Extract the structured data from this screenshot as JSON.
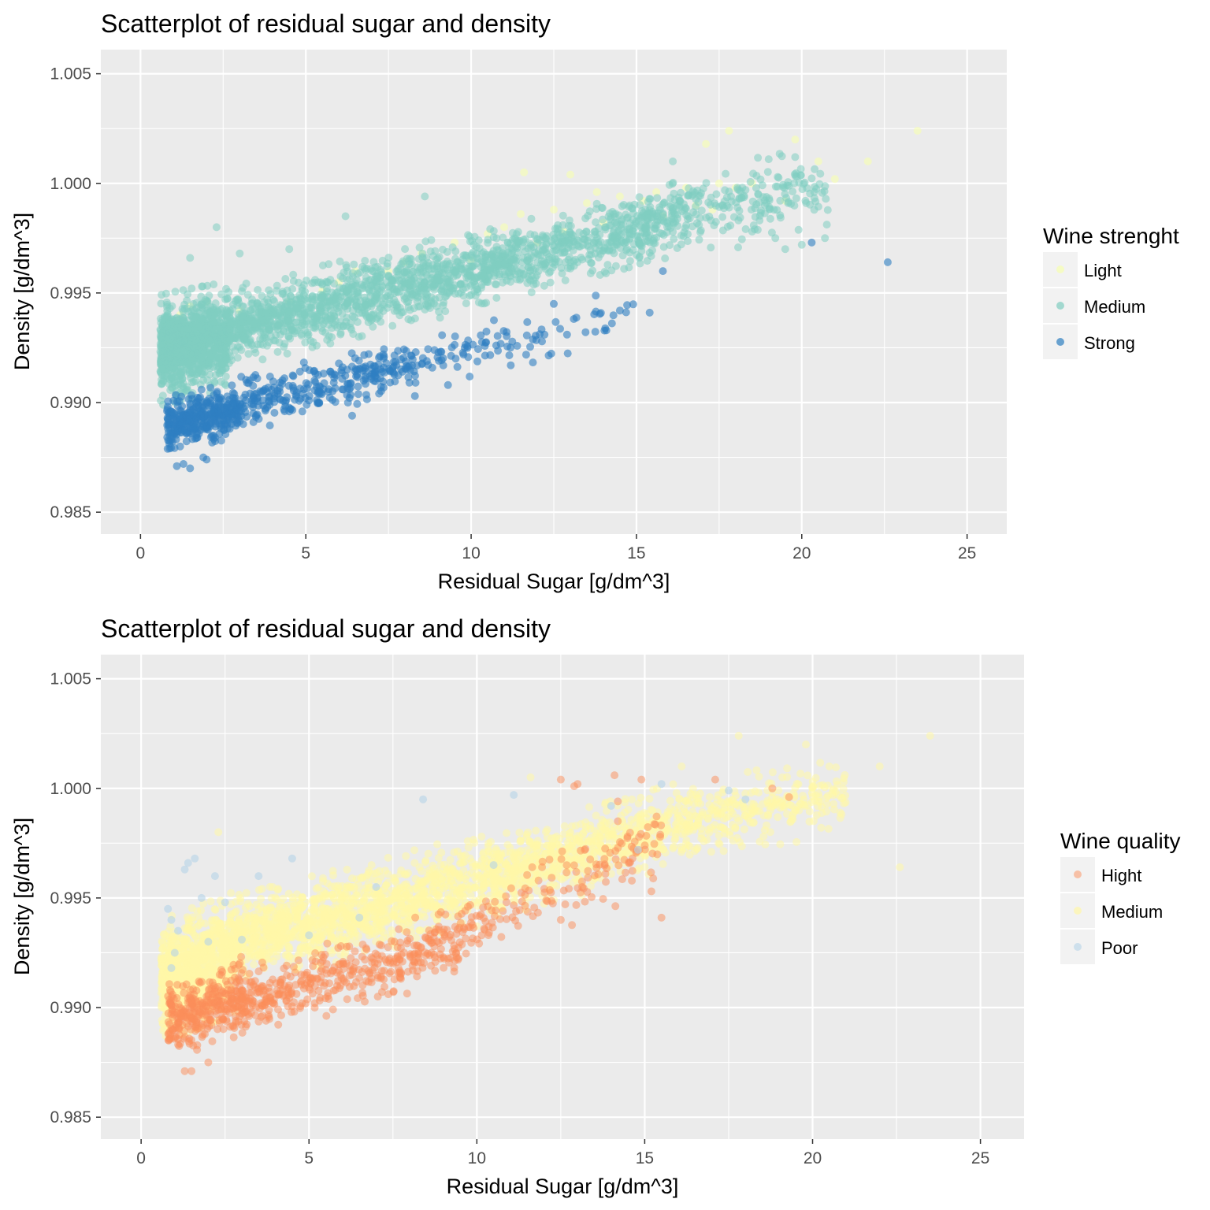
{
  "chart_data": [
    {
      "type": "scatter",
      "title": "Scatterplot of residual sugar and density",
      "xlabel": "Residual Sugar [g/dm^3]",
      "ylabel": "Density [g/dm^3]",
      "xlim": [
        -1.2,
        26.2
      ],
      "ylim": [
        0.984,
        1.0061
      ],
      "xticks": [
        0,
        5,
        10,
        15,
        20,
        25
      ],
      "yticks": [
        0.985,
        0.99,
        0.995,
        1.0,
        1.005
      ],
      "ytick_labels": [
        "0.985",
        "0.990",
        "0.995",
        "1.000",
        "1.005"
      ],
      "grid": true,
      "legend": {
        "title": "Wine strenght",
        "position": "right",
        "entries": [
          {
            "name": "Light",
            "color": "#ffffbf"
          },
          {
            "name": "Medium",
            "color": "#80cdc1"
          },
          {
            "name": "Strong",
            "color": "#3182bd"
          }
        ]
      },
      "series": [
        {
          "name": "Light",
          "color": "#f6ffb0",
          "opacity": 0.6,
          "points": [
            [
              23.5,
              1.0024
            ],
            [
              17.8,
              1.0024
            ],
            [
              17.1,
              1.0018
            ],
            [
              22.0,
              1.001
            ],
            [
              20.5,
              1.001
            ],
            [
              19.8,
              1.002
            ],
            [
              11.6,
              1.0005
            ],
            [
              13.0,
              1.0004
            ],
            [
              18.5,
              1.0
            ],
            [
              17.5,
              1.0
            ],
            [
              16.5,
              0.9998
            ],
            [
              15.6,
              0.9996
            ],
            [
              14.5,
              0.9994
            ],
            [
              13.5,
              0.9991
            ],
            [
              12.5,
              0.9988
            ],
            [
              11.5,
              0.9986
            ],
            [
              11.0,
              0.998
            ],
            [
              10.5,
              0.9977
            ],
            [
              12.8,
              0.9978
            ],
            [
              15.8,
              0.9985
            ],
            [
              19.5,
              0.9992
            ],
            [
              21.0,
              1.0002
            ],
            [
              9.5,
              0.9973
            ],
            [
              8.0,
              0.9964
            ],
            [
              7.5,
              0.996
            ],
            [
              6.0,
              0.9955
            ],
            [
              5.5,
              0.9951
            ],
            [
              4.5,
              0.9946
            ],
            [
              3.0,
              0.9942
            ],
            [
              2.0,
              0.9946
            ],
            [
              1.5,
              0.9944
            ],
            [
              1.2,
              0.994
            ],
            [
              1.6,
              0.9935
            ],
            [
              2.5,
              0.993
            ],
            [
              1.0,
              0.993
            ],
            [
              14.0,
              0.9982
            ],
            [
              16.8,
              0.999
            ],
            [
              18.0,
              0.9998
            ],
            [
              13.8,
              0.9996
            ],
            [
              15.2,
              0.9992
            ],
            [
              17.3,
              0.9988
            ],
            [
              12.0,
              0.9973
            ],
            [
              8.5,
              0.9968
            ],
            [
              6.5,
              0.996
            ],
            [
              10.0,
              0.9965
            ]
          ]
        },
        {
          "name": "Medium",
          "color": "#80cdc1",
          "opacity": 0.55,
          "clusters": [
            {
              "n": 900,
              "x": [
                0.6,
                2.6
              ],
              "y_center": [
                0.9924,
                0.993
              ],
              "y_spread": 0.0018
            },
            {
              "n": 1100,
              "x": [
                2.6,
                10.5
              ],
              "y_center": [
                0.9934,
                0.9962
              ],
              "y_spread": 0.0013
            },
            {
              "n": 600,
              "x": [
                10.5,
                16.5
              ],
              "y_center": [
                0.9962,
                0.9985
              ],
              "y_spread": 0.0012
            },
            {
              "n": 180,
              "x": [
                16.5,
                20.8
              ],
              "y_center": [
                0.9986,
                0.9998
              ],
              "y_spread": 0.0014
            }
          ],
          "points": [
            [
              2.3,
              0.998
            ],
            [
              8.6,
              0.9994
            ],
            [
              6.2,
              0.9985
            ],
            [
              4.5,
              0.997
            ],
            [
              19.5,
              0.997
            ],
            [
              20.0,
              0.9972
            ],
            [
              19.2,
              0.9975
            ],
            [
              20.7,
              0.9975
            ],
            [
              18.5,
              0.9978
            ],
            [
              14.8,
              0.9975
            ],
            [
              3.0,
              0.9968
            ],
            [
              1.5,
              0.9966
            ],
            [
              18.3,
              0.9997
            ],
            [
              19.0,
              1.0011
            ],
            [
              19.8,
              1.0012
            ],
            [
              16.1,
              1.001
            ]
          ]
        },
        {
          "name": "Strong",
          "color": "#2e7fc1",
          "opacity": 0.6,
          "clusters": [
            {
              "n": 350,
              "x": [
                0.8,
                3.0
              ],
              "y_center": [
                0.989,
                0.9897
              ],
              "y_spread": 0.0009
            },
            {
              "n": 280,
              "x": [
                3.0,
                8.5
              ],
              "y_center": [
                0.9899,
                0.9918
              ],
              "y_spread": 0.0009
            },
            {
              "n": 90,
              "x": [
                8.5,
                15.0
              ],
              "y_center": [
                0.992,
                0.994
              ],
              "y_spread": 0.0009
            }
          ],
          "points": [
            [
              1.1,
              0.9871
            ],
            [
              1.3,
              0.9872
            ],
            [
              1.5,
              0.987
            ],
            [
              1.9,
              0.9875
            ],
            [
              2.0,
              0.9874
            ],
            [
              1.2,
              0.988
            ],
            [
              22.6,
              0.9964
            ],
            [
              20.3,
              0.9973
            ],
            [
              15.4,
              0.9941
            ],
            [
              15.8,
              0.996
            ],
            [
              12.9,
              0.9931
            ],
            [
              12.5,
              0.9945
            ],
            [
              9.3,
              0.9908
            ],
            [
              8.3,
              0.9903
            ],
            [
              4.5,
              0.9896
            ],
            [
              6.4,
              0.9894
            ],
            [
              7.1,
              0.9912
            ],
            [
              11.2,
              0.9917
            ],
            [
              14.5,
              0.9942
            ]
          ]
        }
      ]
    },
    {
      "type": "scatter",
      "title": "Scatterplot of residual sugar and density",
      "xlabel": "Residual Sugar [g/dm^3]",
      "ylabel": "Density [g/dm^3]",
      "xlim": [
        -1.2,
        26.3
      ],
      "ylim": [
        0.984,
        1.0061
      ],
      "xticks": [
        0,
        5,
        10,
        15,
        20,
        25
      ],
      "yticks": [
        0.985,
        0.99,
        0.995,
        1.0,
        1.005
      ],
      "ytick_labels": [
        "0.985",
        "0.990",
        "0.995",
        "1.000",
        "1.005"
      ],
      "grid": true,
      "legend": {
        "title": "Wine quality",
        "position": "right",
        "entries": [
          {
            "name": "Hight",
            "color": "#fc8d59"
          },
          {
            "name": "Medium",
            "color": "#ffffbf"
          },
          {
            "name": "Poor",
            "color": "#91bfdb"
          }
        ]
      },
      "series": [
        {
          "name": "Medium",
          "color": "#fff7a8",
          "opacity": 0.55,
          "clusters": [
            {
              "n": 900,
              "x": [
                0.6,
                2.8
              ],
              "y_center": [
                0.9912,
                0.9925
              ],
              "y_spread": 0.002
            },
            {
              "n": 1200,
              "x": [
                2.8,
                10.5
              ],
              "y_center": [
                0.993,
                0.996
              ],
              "y_spread": 0.0015
            },
            {
              "n": 700,
              "x": [
                10.5,
                16.5
              ],
              "y_center": [
                0.996,
                0.9985
              ],
              "y_spread": 0.0014
            },
            {
              "n": 250,
              "x": [
                16.5,
                21.0
              ],
              "y_center": [
                0.9985,
                0.9998
              ],
              "y_spread": 0.0013
            }
          ],
          "points": [
            [
              23.5,
              1.0024
            ],
            [
              17.8,
              1.0024
            ],
            [
              22.0,
              1.001
            ],
            [
              22.6,
              0.9964
            ],
            [
              20.5,
              1.001
            ],
            [
              19.8,
              1.002
            ],
            [
              16.1,
              1.001
            ],
            [
              11.6,
              1.0005
            ],
            [
              2.3,
              0.998
            ]
          ]
        },
        {
          "name": "Hight",
          "color": "#fc8d59",
          "opacity": 0.5,
          "clusters": [
            {
              "n": 320,
              "x": [
                0.8,
                3.0
              ],
              "y_center": [
                0.9895,
                0.9905
              ],
              "y_spread": 0.0013
            },
            {
              "n": 420,
              "x": [
                3.0,
                9.5
              ],
              "y_center": [
                0.9902,
                0.993
              ],
              "y_spread": 0.0012
            },
            {
              "n": 160,
              "x": [
                9.5,
                15.5
              ],
              "y_center": [
                0.9935,
                0.9975
              ],
              "y_spread": 0.0014
            }
          ],
          "points": [
            [
              1.3,
              0.9871
            ],
            [
              1.5,
              0.9871
            ],
            [
              2.0,
              0.9875
            ],
            [
              14.1,
              1.0006
            ],
            [
              14.9,
              1.0004
            ],
            [
              12.5,
              1.0004
            ],
            [
              13.0,
              1.0002
            ],
            [
              12.9,
              1.0001
            ],
            [
              14.2,
              0.9985
            ],
            [
              15.5,
              0.9941
            ],
            [
              15.2,
              0.9953
            ],
            [
              12.5,
              0.994
            ],
            [
              14.2,
              0.9994
            ],
            [
              19.3,
              0.9996
            ],
            [
              18.8,
              1.0
            ],
            [
              17.1,
              1.0004
            ]
          ]
        },
        {
          "name": "Poor",
          "color": "#b5d4e8",
          "opacity": 0.6,
          "points": [
            [
              1.6,
              0.9968
            ],
            [
              1.4,
              0.9966
            ],
            [
              1.3,
              0.9963
            ],
            [
              2.2,
              0.996
            ],
            [
              0.8,
              0.9945
            ],
            [
              0.9,
              0.994
            ],
            [
              1.1,
              0.9935
            ],
            [
              1.0,
              0.9925
            ],
            [
              0.9,
              0.9918
            ],
            [
              1.8,
              0.995
            ],
            [
              2.5,
              0.9948
            ],
            [
              3.5,
              0.996
            ],
            [
              4.5,
              0.9968
            ],
            [
              8.4,
              0.9995
            ],
            [
              11.1,
              0.9997
            ],
            [
              10.5,
              0.9965
            ],
            [
              14.8,
              0.9972
            ],
            [
              15.5,
              1.0002
            ],
            [
              14.0,
              0.9992
            ],
            [
              18.0,
              0.9995
            ],
            [
              17.5,
              0.9999
            ],
            [
              6.5,
              0.9941
            ],
            [
              7.0,
              0.9955
            ],
            [
              5.0,
              0.9933
            ],
            [
              3.0,
              0.9931
            ],
            [
              2.0,
              0.993
            ]
          ]
        }
      ]
    }
  ]
}
